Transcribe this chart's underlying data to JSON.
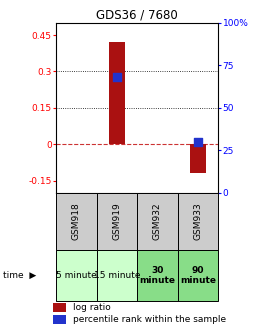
{
  "title": "GDS36 / 7680",
  "categories": [
    "GSM918",
    "GSM919",
    "GSM932",
    "GSM933"
  ],
  "time_labels": [
    "5 minute",
    "15 minute",
    "30\nminute",
    "90\nminute"
  ],
  "log_ratio": [
    0.0,
    0.42,
    0.0,
    -0.12
  ],
  "percentile_rank_pct": [
    null,
    68,
    null,
    30
  ],
  "ylim_left": [
    -0.2,
    0.5
  ],
  "ylim_right": [
    0,
    100
  ],
  "left_ticks": [
    -0.15,
    0,
    0.15,
    0.3,
    0.45
  ],
  "right_ticks": [
    0,
    25,
    50,
    75,
    100
  ],
  "left_tick_labels": [
    "-0.15",
    "0",
    "0.15",
    "0.3",
    "0.45"
  ],
  "right_tick_labels": [
    "0",
    "25",
    "50",
    "75",
    "100%"
  ],
  "bar_color": "#aa1111",
  "dot_color": "#2233cc",
  "zero_line_color": "#cc3333",
  "plot_bg": "#ffffff",
  "gsm_bg": "#cccccc",
  "time_bg_light": "#ccffcc",
  "time_bg_dark": "#88dd88",
  "bar_width": 0.4,
  "bar_positions": [
    1,
    2,
    3,
    4
  ]
}
